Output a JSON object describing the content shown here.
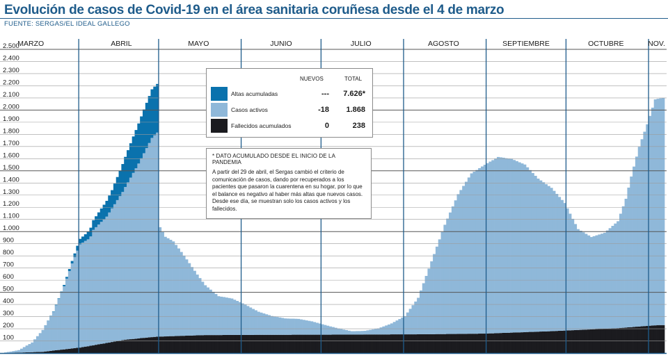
{
  "title": "Evolución de casos de Covid-19 en el área sanitaria coruñesa desde el 4 de marzo",
  "source": "FUENTE: SERGAS/EL IDEAL GALLEGO",
  "legend": {
    "header_new": "NUEVOS",
    "header_total": "TOTAL",
    "rows": [
      {
        "label": "Altas acumuladas",
        "new": "---",
        "total": "7.626*",
        "color": "#0a72ad"
      },
      {
        "label": "Casos activos",
        "new": "-18",
        "total": "1.868",
        "color": "#8fb8d9"
      },
      {
        "label": "Fallecidos acumulados",
        "new": "0",
        "total": "238",
        "color": "#1b1b1f"
      }
    ]
  },
  "note": {
    "title": "* DATO ACUMULADO DESDE EL INICIO DE LA PANDEMIA",
    "text": "A partir del 29 de abril, el Sergas cambió el criterio de comunicación de casos, dando por recuperados a los pacientes que pasaron la cuarentena en su hogar, por lo que el balance es negativo al haber más altas que nuevos casos. Desde ese día, se muestran solo los casos activos y los fallecidos."
  },
  "chart_data": {
    "type": "bar",
    "stacked": true,
    "x_start": "4 de marzo",
    "months": [
      "MARZO",
      "ABRIL",
      "MAYO",
      "JUNIO",
      "JULIO",
      "AGOSTO",
      "SEPTIEMBRE",
      "OCTUBRE",
      "NOV."
    ],
    "ylim": [
      0,
      2500
    ],
    "yticks": [
      "2.500",
      "2.400",
      "2.300",
      "2.200",
      "2.100",
      "2.000",
      "1.900",
      "1.800",
      "1.700",
      "1.600",
      "1.500",
      "1.400",
      "1.300",
      "1.200",
      "1.100",
      "1.000",
      "900",
      "800",
      "700",
      "600",
      "500",
      "400",
      "300",
      "200",
      "100"
    ],
    "grid": true,
    "colors": {
      "altas": "#0a72ad",
      "activos": "#8fb8d9",
      "fallecidos": "#1b1b1f"
    },
    "series": [
      {
        "name": "Fallecidos acumulados",
        "key": "fallecidos",
        "points": [
          [
            0,
            0
          ],
          [
            14,
            10
          ],
          [
            28,
            45
          ],
          [
            45,
            110
          ],
          [
            57,
            135
          ],
          [
            75,
            148
          ],
          [
            100,
            150
          ],
          [
            130,
            152
          ],
          [
            160,
            155
          ],
          [
            180,
            160
          ],
          [
            205,
            180
          ],
          [
            230,
            205
          ],
          [
            245,
            230
          ]
        ]
      },
      {
        "name": "Casos activos",
        "key": "activos",
        "points": [
          [
            0,
            5
          ],
          [
            5,
            20
          ],
          [
            10,
            80
          ],
          [
            14,
            180
          ],
          [
            18,
            320
          ],
          [
            22,
            520
          ],
          [
            25,
            700
          ],
          [
            28,
            850
          ],
          [
            31,
            880
          ],
          [
            32,
            900
          ],
          [
            33,
            950
          ],
          [
            38,
            1040
          ],
          [
            44,
            1220
          ],
          [
            50,
            1440
          ],
          [
            55,
            1640
          ],
          [
            57,
            1680
          ],
          [
            58,
            900
          ],
          [
            60,
            820
          ],
          [
            63,
            780
          ],
          [
            67,
            660
          ],
          [
            72,
            500
          ],
          [
            75,
            410
          ],
          [
            80,
            320
          ],
          [
            85,
            300
          ],
          [
            90,
            250
          ],
          [
            95,
            190
          ],
          [
            100,
            155
          ],
          [
            105,
            135
          ],
          [
            110,
            130
          ],
          [
            115,
            110
          ],
          [
            120,
            80
          ],
          [
            125,
            50
          ],
          [
            130,
            28
          ],
          [
            135,
            30
          ],
          [
            140,
            50
          ],
          [
            145,
            90
          ],
          [
            150,
            150
          ],
          [
            155,
            300
          ],
          [
            160,
            600
          ],
          [
            165,
            900
          ],
          [
            170,
            1150
          ],
          [
            175,
            1320
          ],
          [
            180,
            1390
          ],
          [
            185,
            1450
          ],
          [
            190,
            1430
          ],
          [
            195,
            1380
          ],
          [
            200,
            1260
          ],
          [
            205,
            1180
          ],
          [
            210,
            1050
          ],
          [
            212,
            960
          ],
          [
            215,
            830
          ],
          [
            220,
            760
          ],
          [
            225,
            790
          ],
          [
            230,
            880
          ],
          [
            233,
            1060
          ],
          [
            235,
            1240
          ],
          [
            238,
            1480
          ],
          [
            241,
            1660
          ],
          [
            244,
            1860
          ],
          [
            247,
            1870
          ]
        ]
      },
      {
        "name": "Altas acumuladas",
        "key": "altas",
        "points": [
          [
            0,
            0
          ],
          [
            14,
            0
          ],
          [
            20,
            5
          ],
          [
            25,
            20
          ],
          [
            27,
            40
          ],
          [
            30,
            55
          ],
          [
            33,
            80
          ],
          [
            36,
            110
          ],
          [
            40,
            150
          ],
          [
            44,
            230
          ],
          [
            48,
            300
          ],
          [
            52,
            360
          ],
          [
            55,
            400
          ],
          [
            57,
            400
          ],
          [
            58,
            0
          ],
          [
            247,
            0
          ]
        ]
      }
    ]
  }
}
